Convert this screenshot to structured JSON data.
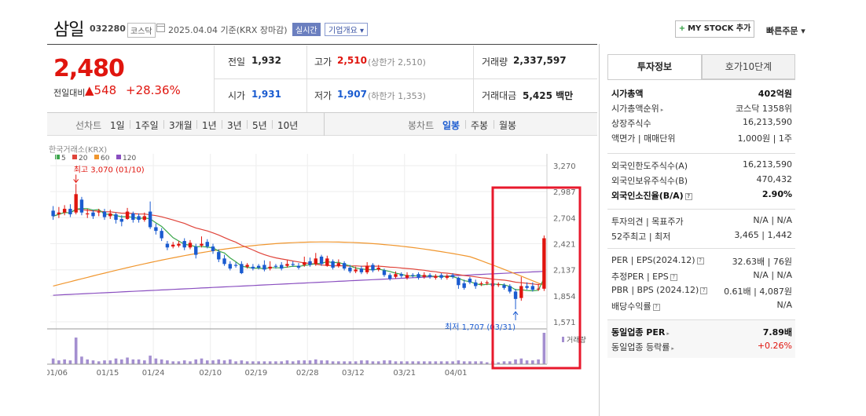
{
  "header": {
    "stock_name": "삼일",
    "stock_code": "032280",
    "market": "코스닥",
    "date_text": "2025.04.04  기준(KRX 장마감)",
    "realtime_label": "실시간",
    "company_info_label": "기업개요 ▾",
    "mystock_label": "MY STOCK 추가",
    "quick_order_label": "빠른주문 ▾"
  },
  "quote": {
    "price": "2,480",
    "prev_label": "전일대비",
    "change": "▲548",
    "change_pct": "+28.36%",
    "prev_close_label": "전일",
    "prev_close": "1,932",
    "high_label": "고가",
    "high": "2,510",
    "high_limit": "(상한가 2,510)",
    "volume_label": "거래량",
    "volume": "2,337,597",
    "open_label": "시가",
    "open": "1,931",
    "low_label": "저가",
    "low": "1,907",
    "low_limit": "(하한가 1,353)",
    "amount_label": "거래대금",
    "amount": "5,425 백만"
  },
  "period_bar": {
    "line_chart_label": "선차트",
    "line_periods": [
      "1일",
      "1주일",
      "3개월",
      "1년",
      "3년",
      "5년",
      "10년"
    ],
    "candle_chart_label": "봉차트",
    "candle_periods": [
      "일봉",
      "주봉",
      "월봉"
    ],
    "selected_candle": "일봉"
  },
  "chart_data": {
    "type": "candlestick",
    "source_label": "한국거래소(KRX)",
    "ma_legend": [
      {
        "name": "5",
        "color": "#3aa64a"
      },
      {
        "name": "20",
        "color": "#e0443a"
      },
      {
        "name": "60",
        "color": "#f0962e"
      },
      {
        "name": "120",
        "color": "#8a4fc0"
      }
    ],
    "y_ticks": [
      3270,
      2987,
      2704,
      2421,
      2137,
      1854,
      1571
    ],
    "y_tick_labels": [
      "3,270",
      "2,987",
      "2,704",
      "2,421",
      "2,137",
      "1,854",
      "1,571"
    ],
    "x_ticks": [
      "01/06",
      "01/15",
      "01/24",
      "02/10",
      "02/19",
      "02/28",
      "03/12",
      "03/21",
      "04/01"
    ],
    "max_annotation": "최고 3,070 (01/10)",
    "min_annotation": "최저 1,707 (03/31)",
    "volume_label": "거래량",
    "up_color": "#e0150e",
    "down_color": "#1a5bd0",
    "volume_color": "#a48fd0",
    "highlight_color": "#e8192c",
    "candles": [
      {
        "o": 2780,
        "c": 2720,
        "h": 2830,
        "l": 2680,
        "v": 6
      },
      {
        "o": 2740,
        "c": 2760,
        "h": 2820,
        "l": 2700,
        "v": 4
      },
      {
        "o": 2760,
        "c": 2800,
        "h": 2840,
        "l": 2730,
        "v": 5
      },
      {
        "o": 2800,
        "c": 2740,
        "h": 2850,
        "l": 2710,
        "v": 4
      },
      {
        "o": 2760,
        "c": 2960,
        "h": 3070,
        "l": 2740,
        "v": 28
      },
      {
        "o": 2900,
        "c": 2760,
        "h": 2930,
        "l": 2730,
        "v": 8
      },
      {
        "o": 2740,
        "c": 2750,
        "h": 2800,
        "l": 2700,
        "v": 5
      },
      {
        "o": 2760,
        "c": 2720,
        "h": 2790,
        "l": 2690,
        "v": 4
      },
      {
        "o": 2760,
        "c": 2770,
        "h": 2800,
        "l": 2720,
        "v": 3
      },
      {
        "o": 2770,
        "c": 2710,
        "h": 2800,
        "l": 2680,
        "v": 4
      },
      {
        "o": 2720,
        "c": 2750,
        "h": 2790,
        "l": 2690,
        "v": 4
      },
      {
        "o": 2740,
        "c": 2680,
        "h": 2760,
        "l": 2640,
        "v": 6
      },
      {
        "o": 2690,
        "c": 2660,
        "h": 2730,
        "l": 2610,
        "v": 5
      },
      {
        "o": 2690,
        "c": 2770,
        "h": 2810,
        "l": 2680,
        "v": 7
      },
      {
        "o": 2750,
        "c": 2680,
        "h": 2770,
        "l": 2650,
        "v": 5
      },
      {
        "o": 2720,
        "c": 2680,
        "h": 2750,
        "l": 2650,
        "v": 5
      },
      {
        "o": 2680,
        "c": 2720,
        "h": 2760,
        "l": 2660,
        "v": 4
      },
      {
        "o": 2770,
        "c": 2600,
        "h": 2880,
        "l": 2580,
        "v": 9
      },
      {
        "o": 2600,
        "c": 2560,
        "h": 2640,
        "l": 2520,
        "v": 6
      },
      {
        "o": 2560,
        "c": 2480,
        "h": 2590,
        "l": 2450,
        "v": 5
      },
      {
        "o": 2420,
        "c": 2380,
        "h": 2450,
        "l": 2350,
        "v": 4
      },
      {
        "o": 2390,
        "c": 2410,
        "h": 2440,
        "l": 2370,
        "v": 3
      },
      {
        "o": 2400,
        "c": 2420,
        "h": 2450,
        "l": 2380,
        "v": 3
      },
      {
        "o": 2450,
        "c": 2380,
        "h": 2480,
        "l": 2350,
        "v": 4
      },
      {
        "o": 2380,
        "c": 2430,
        "h": 2460,
        "l": 2360,
        "v": 3
      },
      {
        "o": 2390,
        "c": 2300,
        "h": 2420,
        "l": 2260,
        "v": 5
      },
      {
        "o": 2400,
        "c": 2420,
        "h": 2500,
        "l": 2380,
        "v": 6
      },
      {
        "o": 2440,
        "c": 2390,
        "h": 2470,
        "l": 2370,
        "v": 4
      },
      {
        "o": 2390,
        "c": 2340,
        "h": 2420,
        "l": 2310,
        "v": 4
      },
      {
        "o": 2330,
        "c": 2250,
        "h": 2360,
        "l": 2220,
        "v": 5
      },
      {
        "o": 2260,
        "c": 2200,
        "h": 2300,
        "l": 2180,
        "v": 4
      },
      {
        "o": 2200,
        "c": 2150,
        "h": 2230,
        "l": 2130,
        "v": 5
      },
      {
        "o": 2190,
        "c": 2180,
        "h": 2220,
        "l": 2160,
        "v": 3
      },
      {
        "o": 2200,
        "c": 2100,
        "h": 2230,
        "l": 2090,
        "v": 4
      },
      {
        "o": 2170,
        "c": 2190,
        "h": 2210,
        "l": 2150,
        "v": 3
      },
      {
        "o": 2170,
        "c": 2150,
        "h": 2200,
        "l": 2130,
        "v": 3
      },
      {
        "o": 2180,
        "c": 2160,
        "h": 2200,
        "l": 2140,
        "v": 3
      },
      {
        "o": 2190,
        "c": 2140,
        "h": 2240,
        "l": 2120,
        "v": 3
      },
      {
        "o": 2150,
        "c": 2170,
        "h": 2230,
        "l": 2130,
        "v": 3
      },
      {
        "o": 2180,
        "c": 2170,
        "h": 2200,
        "l": 2150,
        "v": 3
      },
      {
        "o": 2190,
        "c": 2150,
        "h": 2220,
        "l": 2130,
        "v": 3
      },
      {
        "o": 2180,
        "c": 2200,
        "h": 2240,
        "l": 2160,
        "v": 4
      },
      {
        "o": 2200,
        "c": 2190,
        "h": 2230,
        "l": 2170,
        "v": 3
      },
      {
        "o": 2180,
        "c": 2160,
        "h": 2210,
        "l": 2140,
        "v": 4
      },
      {
        "o": 2190,
        "c": 2220,
        "h": 2280,
        "l": 2170,
        "v": 4
      },
      {
        "o": 2230,
        "c": 2190,
        "h": 2270,
        "l": 2170,
        "v": 4
      },
      {
        "o": 2200,
        "c": 2260,
        "h": 2320,
        "l": 2180,
        "v": 5
      },
      {
        "o": 2280,
        "c": 2200,
        "h": 2300,
        "l": 2180,
        "v": 4
      },
      {
        "o": 2180,
        "c": 2260,
        "h": 2290,
        "l": 2170,
        "v": 4
      },
      {
        "o": 2230,
        "c": 2160,
        "h": 2250,
        "l": 2140,
        "v": 3
      },
      {
        "o": 2180,
        "c": 2210,
        "h": 2250,
        "l": 2160,
        "v": 3
      },
      {
        "o": 2210,
        "c": 2150,
        "h": 2230,
        "l": 2130,
        "v": 3
      },
      {
        "o": 2160,
        "c": 2120,
        "h": 2190,
        "l": 2100,
        "v": 3
      },
      {
        "o": 2120,
        "c": 2140,
        "h": 2170,
        "l": 2100,
        "v": 3
      },
      {
        "o": 2150,
        "c": 2110,
        "h": 2180,
        "l": 2090,
        "v": 4
      },
      {
        "o": 2110,
        "c": 2180,
        "h": 2220,
        "l": 2090,
        "v": 4
      },
      {
        "o": 2190,
        "c": 2130,
        "h": 2210,
        "l": 2110,
        "v": 3
      },
      {
        "o": 2140,
        "c": 2160,
        "h": 2190,
        "l": 2120,
        "v": 3
      },
      {
        "o": 2130,
        "c": 2080,
        "h": 2150,
        "l": 2060,
        "v": 4
      },
      {
        "o": 2080,
        "c": 2040,
        "h": 2100,
        "l": 2020,
        "v": 4
      },
      {
        "o": 2060,
        "c": 2090,
        "h": 2120,
        "l": 2040,
        "v": 3
      },
      {
        "o": 2090,
        "c": 2070,
        "h": 2110,
        "l": 2050,
        "v": 3
      },
      {
        "o": 2050,
        "c": 2080,
        "h": 2110,
        "l": 2030,
        "v": 3
      },
      {
        "o": 2080,
        "c": 2070,
        "h": 2100,
        "l": 2050,
        "v": 3
      },
      {
        "o": 2090,
        "c": 2050,
        "h": 2110,
        "l": 2030,
        "v": 3
      },
      {
        "o": 2060,
        "c": 2080,
        "h": 2110,
        "l": 2040,
        "v": 3
      },
      {
        "o": 2080,
        "c": 2060,
        "h": 2100,
        "l": 2040,
        "v": 3
      },
      {
        "o": 2050,
        "c": 2070,
        "h": 2090,
        "l": 2030,
        "v": 3
      },
      {
        "o": 2080,
        "c": 2050,
        "h": 2100,
        "l": 2030,
        "v": 3
      },
      {
        "o": 2050,
        "c": 2070,
        "h": 2090,
        "l": 2030,
        "v": 3
      },
      {
        "o": 2080,
        "c": 2060,
        "h": 2100,
        "l": 2040,
        "v": 3
      },
      {
        "o": 2050,
        "c": 1970,
        "h": 2060,
        "l": 1930,
        "v": 4
      },
      {
        "o": 1990,
        "c": 1940,
        "h": 2030,
        "l": 1920,
        "v": 3
      },
      {
        "o": 2040,
        "c": 2000,
        "h": 2060,
        "l": 1980,
        "v": 3
      },
      {
        "o": 2000,
        "c": 1960,
        "h": 2030,
        "l": 1930,
        "v": 3
      },
      {
        "o": 1990,
        "c": 1990,
        "h": 2010,
        "l": 1960,
        "v": 3
      },
      {
        "o": 1990,
        "c": 2000,
        "h": 2020,
        "l": 1970,
        "v": 2
      },
      {
        "o": 1990,
        "c": 1960,
        "h": 2010,
        "l": 1940,
        "v": 3
      },
      {
        "o": 1970,
        "c": 1980,
        "h": 2000,
        "l": 1950,
        "v": 2
      },
      {
        "o": 1970,
        "c": 1940,
        "h": 1990,
        "l": 1920,
        "v": 3
      },
      {
        "o": 1960,
        "c": 1900,
        "h": 1980,
        "l": 1880,
        "v": 3
      },
      {
        "o": 1900,
        "c": 1820,
        "h": 1930,
        "l": 1707,
        "v": 5
      },
      {
        "o": 1830,
        "c": 1960,
        "h": 2060,
        "l": 1800,
        "v": 6
      },
      {
        "o": 1960,
        "c": 1940,
        "h": 2000,
        "l": 1920,
        "v": 4
      },
      {
        "o": 1960,
        "c": 1920,
        "h": 2000,
        "l": 1900,
        "v": 4
      },
      {
        "o": 1931,
        "c": 1932,
        "h": 1980,
        "l": 1907,
        "v": 5
      },
      {
        "o": 1931,
        "c": 2480,
        "h": 2510,
        "l": 1907,
        "v": 33
      }
    ]
  },
  "invest_panel": {
    "tab_active": "투자정보",
    "tab_inactive": "호가10단계",
    "rows": [
      {
        "label": "시가총액",
        "value": "402억원",
        "bold": true
      },
      {
        "label": "시가총액순위",
        "value": "코스닥 1358위",
        "tri": true
      },
      {
        "label": "상장주식수",
        "value": "16,213,590"
      },
      {
        "label": "액면가 | 매매단위",
        "value": "1,000원 | 1주"
      }
    ],
    "rows2": [
      {
        "label": "외국인한도주식수(A)",
        "value": "16,213,590"
      },
      {
        "label": "외국인보유주식수(B)",
        "value": "470,432"
      },
      {
        "label": "외국인소진율(B/A)",
        "value": "2.90%",
        "bold": true,
        "q": true
      }
    ],
    "rows3": [
      {
        "label": "투자의견 | 목표주가",
        "value": "N/A | N/A"
      },
      {
        "label": "52주최고 | 최저",
        "value": "3,465 | 1,442"
      }
    ],
    "rows4": [
      {
        "label": "PER | EPS(2024.12)",
        "value": "32.63배 | 76원",
        "q": true
      },
      {
        "label": "추정PER | EPS",
        "value": "N/A | N/A",
        "q": true
      },
      {
        "label": "PBR | BPS (2024.12)",
        "value": "0.61배 | 4,087원",
        "q": true
      },
      {
        "label": "배당수익률",
        "value": "N/A",
        "q": true
      }
    ],
    "rows5": [
      {
        "label": "동일업종 PER",
        "value": "7.89배",
        "bold": true,
        "tri": true
      },
      {
        "label": "동일업종 등락률",
        "value": "+0.26%",
        "red": true,
        "tri": true
      }
    ]
  }
}
